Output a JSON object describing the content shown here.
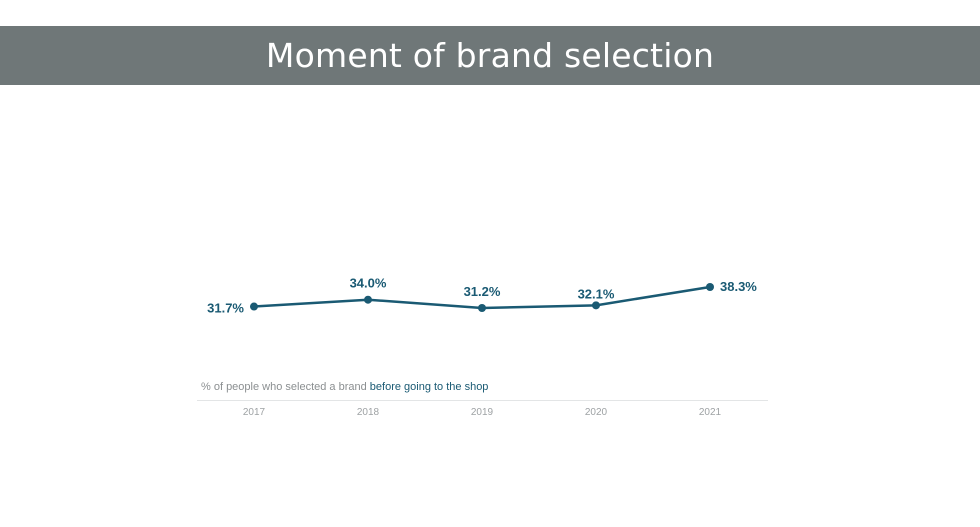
{
  "page": {
    "title": "Moment of brand selection"
  },
  "caption": {
    "prefix": "% of people who selected a brand ",
    "highlight": "before going to the shop"
  },
  "colors": {
    "title_bar": "#6f7778",
    "line": "#1a5a73",
    "label": "#1a5a73",
    "tick": "#9ea2a4"
  },
  "chart_data": {
    "type": "line",
    "title": "Moment of brand selection",
    "categories": [
      "2017",
      "2018",
      "2019",
      "2020",
      "2021"
    ],
    "values": [
      31.7,
      34.0,
      31.2,
      32.1,
      38.3
    ],
    "data_labels": [
      "31.7%",
      "34.0%",
      "31.2%",
      "32.1%",
      "38.3%"
    ],
    "xlabel": "",
    "ylabel": "",
    "grid": false,
    "legend": "none"
  }
}
